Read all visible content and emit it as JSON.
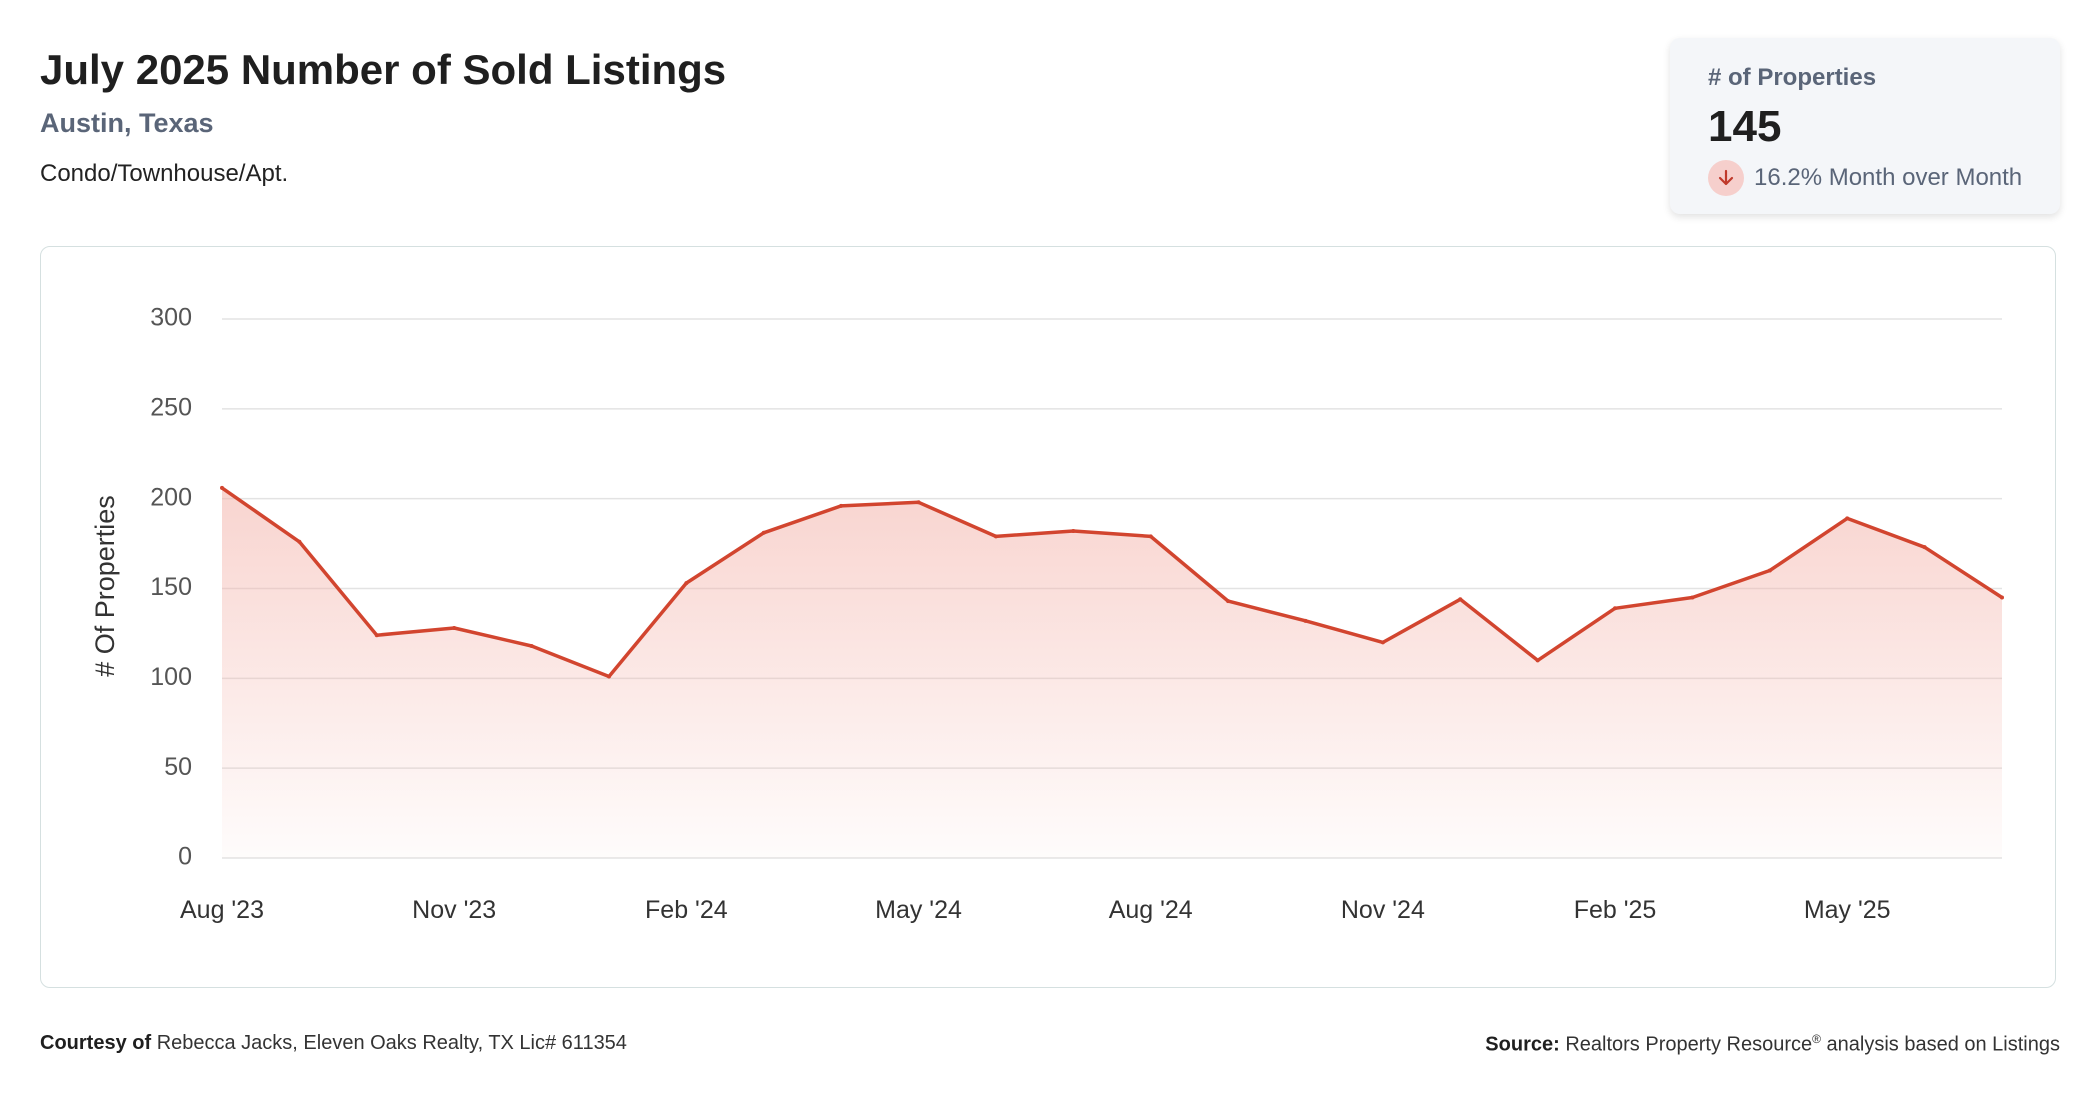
{
  "header": {
    "title": "July 2025 Number of Sold Listings",
    "location": "Austin, Texas",
    "property_type": "Condo/Townhouse/Apt."
  },
  "kpi": {
    "label": "# of Properties",
    "value": "145",
    "change": "16.2% Month over Month",
    "direction": "down",
    "arrow_icon": "arrow-down-icon"
  },
  "footer": {
    "courtesy_label": "Courtesy of",
    "courtesy_text": "Rebecca Jacks, Eleven Oaks Realty, TX Lic# 611354",
    "source_label": "Source:",
    "source_text": "Realtors Property Resource",
    "source_mark": "®",
    "source_suffix": "analysis based on Listings"
  },
  "colors": {
    "line": "#d2452f",
    "fill": "#f5b9b1",
    "grid": "#e3e3e3",
    "muted": "#5a6578"
  },
  "chart_data": {
    "type": "area",
    "ylabel": "# Of Properties",
    "ylim": [
      0,
      300
    ],
    "yticks": [
      0,
      50,
      100,
      150,
      200,
      250,
      300
    ],
    "xtick_labels": [
      "Aug '23",
      "Nov '23",
      "Feb '24",
      "May '24",
      "Aug '24",
      "Nov '24",
      "Feb '25",
      "May '25"
    ],
    "x": [
      "Aug '23",
      "Sep '23",
      "Oct '23",
      "Nov '23",
      "Dec '23",
      "Jan '24",
      "Feb '24",
      "Mar '24",
      "Apr '24",
      "May '24",
      "Jun '24",
      "Jul '24",
      "Aug '24",
      "Sep '24",
      "Oct '24",
      "Nov '24",
      "Dec '24",
      "Jan '25",
      "Feb '25",
      "Mar '25",
      "Apr '25",
      "May '25",
      "Jun '25",
      "Jul '25"
    ],
    "series": [
      {
        "values": [
          206,
          176,
          124,
          128,
          118,
          101,
          153,
          181,
          196,
          198,
          179,
          182,
          179,
          143,
          132,
          120,
          144,
          110,
          139,
          145,
          160,
          189,
          173,
          145
        ]
      }
    ],
    "grid": true,
    "legend": "none"
  }
}
